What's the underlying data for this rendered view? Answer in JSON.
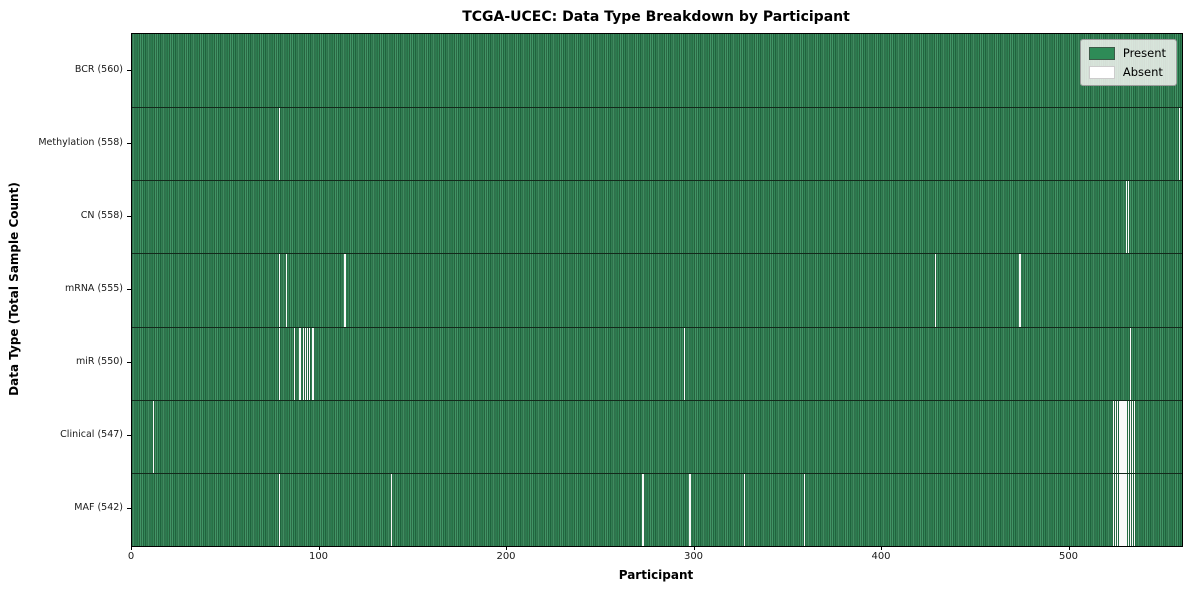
{
  "chart_data": {
    "type": "heatmap",
    "title": "TCGA-UCEC: Data Type Breakdown by Participant",
    "xlabel": "Participant",
    "ylabel": "Data Type (Total Sample Count)",
    "x_ticks": [
      0,
      100,
      200,
      300,
      400,
      500
    ],
    "x_range": [
      0,
      560
    ],
    "n_participants": 560,
    "grid": "row-separators",
    "legend_position": "upper-right",
    "colors": {
      "present": "#2e8b57",
      "absent": "#ffffff",
      "row_separator": "#13291b"
    },
    "legend": [
      {
        "label": "Present",
        "color": "#2e8b57"
      },
      {
        "label": "Absent",
        "color": "#ffffff"
      }
    ],
    "rows": [
      {
        "label": "BCR (560)",
        "data_type": "BCR",
        "present_count": 560,
        "absent_count": 0,
        "absent_participants": []
      },
      {
        "label": "Methylation (558)",
        "data_type": "Methylation",
        "present_count": 558,
        "absent_count": 2,
        "absent_participants": [
          78,
          558
        ]
      },
      {
        "label": "CN (558)",
        "data_type": "CN",
        "present_count": 558,
        "absent_count": 2,
        "absent_participants": [
          530,
          531
        ]
      },
      {
        "label": "mRNA (555)",
        "data_type": "mRNA",
        "present_count": 555,
        "absent_count": 5,
        "absent_participants": [
          78,
          82,
          113,
          428,
          473
        ]
      },
      {
        "label": "miR (550)",
        "data_type": "miR",
        "present_count": 550,
        "absent_count": 10,
        "absent_participants": [
          78,
          86,
          89,
          91,
          92,
          93,
          94,
          96,
          294,
          532
        ]
      },
      {
        "label": "Clinical (547)",
        "data_type": "Clinical",
        "present_count": 547,
        "absent_count": 13,
        "absent_participants": [
          11,
          523,
          524,
          525,
          526,
          527,
          528,
          529,
          530,
          531,
          532,
          533,
          534
        ]
      },
      {
        "label": "MAF (542)",
        "data_type": "MAF",
        "present_count": 542,
        "absent_count": 18,
        "absent_participants": [
          78,
          138,
          272,
          297,
          326,
          358,
          523,
          524,
          525,
          526,
          527,
          528,
          529,
          530,
          531,
          532,
          533,
          534
        ]
      }
    ]
  }
}
